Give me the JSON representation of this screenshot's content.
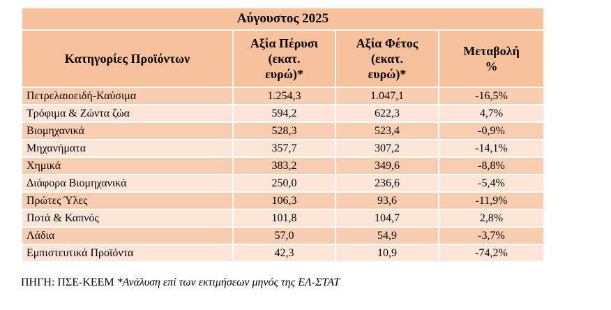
{
  "table": {
    "title": "Αύγουστος  2025",
    "headers": [
      [
        "Κατηγορίες Προϊόντων"
      ],
      [
        "Αξία Πέρυσι",
        "(εκατ.",
        "ευρώ)*"
      ],
      [
        "Αξία Φέτος",
        "(εκατ.",
        "ευρώ)*"
      ],
      [
        "Μεταβολή",
        "%"
      ]
    ],
    "rows": [
      [
        "Πετρελαιοειδή-Καύσιμα",
        "1.254,3",
        "1.047,1",
        "-16,5%"
      ],
      [
        "Τρόφιμα & Ζώντα ζώα",
        "594,2",
        "622,3",
        "4,7%"
      ],
      [
        "Βιομηχανικά",
        "528,3",
        "523,4",
        "-0,9%"
      ],
      [
        "Μηχανήματα",
        "357,7",
        "307,2",
        "-14,1%"
      ],
      [
        "Χημικά",
        "383,2",
        "349,6",
        "-8,8%"
      ],
      [
        "Διάφορα Βιομηχανικά",
        "250,0",
        "236,6",
        "-5,4%"
      ],
      [
        "Πρώτες Ύλες",
        "106,3",
        "93,6",
        "-11,9%"
      ],
      [
        "Ποτά & Καπνός",
        "101,8",
        "104,7",
        "2,8%"
      ],
      [
        "Λάδια",
        "57,0",
        "54,9",
        "-3,7%"
      ],
      [
        "Εμπιστευτικά Προϊόντα",
        "42,3",
        "10,9",
        "-74,2%"
      ]
    ]
  },
  "source": {
    "label": "ΠΗΓΗ: ΠΣΕ-ΚΕΕΜ",
    "note": "*Ανάλυση επί των εκτιμήσεων μηνός της ΕΛ-ΣΤΑΤ"
  }
}
